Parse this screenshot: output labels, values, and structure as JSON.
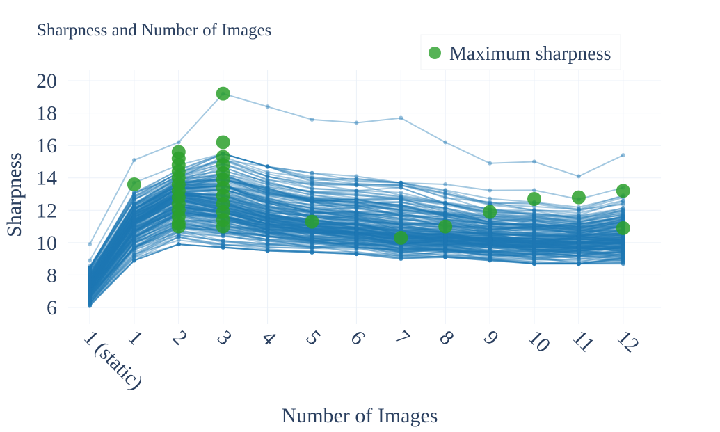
{
  "chart_data": {
    "type": "line",
    "title": "Sharpness and Number of Images",
    "xlabel": "Number of Images",
    "ylabel": "Sharpness",
    "categories": [
      "1 (static)",
      "1",
      "2",
      "3",
      "4",
      "5",
      "6",
      "7",
      "8",
      "9",
      "10",
      "11",
      "12"
    ],
    "ylim": [
      5,
      20.5
    ],
    "yticks": [
      6,
      8,
      10,
      12,
      14,
      16,
      18,
      20
    ],
    "grid": true,
    "legend": {
      "position": "top-right",
      "entries": [
        "Maximum sharpness"
      ]
    },
    "colors": {
      "series": "#1f77b4",
      "maximum": "#2ca02c",
      "grid": "#ebf0f8",
      "text": "#2a3f5f"
    },
    "series_note_count": 200,
    "series_stats": {
      "min": [
        6.1,
        8.9,
        9.9,
        9.7,
        9.5,
        9.4,
        9.3,
        9.0,
        9.1,
        8.9,
        8.7,
        8.7,
        8.7
      ],
      "max": [
        9.9,
        15.1,
        16.2,
        19.2,
        18.4,
        17.6,
        17.4,
        17.7,
        16.2,
        14.9,
        15.0,
        14.1,
        15.4
      ],
      "typical": [
        7.3,
        11.2,
        12.8,
        12.3,
        11.5,
        11.1,
        10.9,
        10.5,
        10.4,
        10.2,
        10.1,
        10.1,
        10.2
      ]
    },
    "highlight_series": {
      "name": "top",
      "values": [
        9.9,
        15.1,
        16.2,
        19.2,
        18.4,
        17.6,
        17.4,
        17.7,
        16.2,
        14.9,
        15.0,
        14.1,
        15.4
      ]
    },
    "maximum_sharpness": {
      "name": "Maximum sharpness",
      "points": [
        {
          "x": "1",
          "y": 13.6
        },
        {
          "x": "2",
          "y": 15.6
        },
        {
          "x": "2",
          "y": 15.2
        },
        {
          "x": "2",
          "y": 14.8
        },
        {
          "x": "2",
          "y": 14.4
        },
        {
          "x": "2",
          "y": 14.0
        },
        {
          "x": "2",
          "y": 13.6
        },
        {
          "x": "2",
          "y": 13.2
        },
        {
          "x": "2",
          "y": 12.8
        },
        {
          "x": "2",
          "y": 12.4
        },
        {
          "x": "2",
          "y": 12.0
        },
        {
          "x": "2",
          "y": 11.6
        },
        {
          "x": "2",
          "y": 11.2
        },
        {
          "x": "2",
          "y": 11.0
        },
        {
          "x": "3",
          "y": 19.2
        },
        {
          "x": "3",
          "y": 16.2
        },
        {
          "x": "3",
          "y": 15.3
        },
        {
          "x": "3",
          "y": 14.8
        },
        {
          "x": "3",
          "y": 14.3
        },
        {
          "x": "3",
          "y": 13.9
        },
        {
          "x": "3",
          "y": 13.4
        },
        {
          "x": "3",
          "y": 12.9
        },
        {
          "x": "3",
          "y": 12.4
        },
        {
          "x": "3",
          "y": 11.9
        },
        {
          "x": "3",
          "y": 11.4
        },
        {
          "x": "3",
          "y": 11.0
        },
        {
          "x": "5",
          "y": 11.3
        },
        {
          "x": "7",
          "y": 10.3
        },
        {
          "x": "8",
          "y": 11.0
        },
        {
          "x": "9",
          "y": 11.9
        },
        {
          "x": "10",
          "y": 12.7
        },
        {
          "x": "11",
          "y": 12.8
        },
        {
          "x": "12",
          "y": 13.2
        },
        {
          "x": "12",
          "y": 10.9
        }
      ]
    }
  }
}
